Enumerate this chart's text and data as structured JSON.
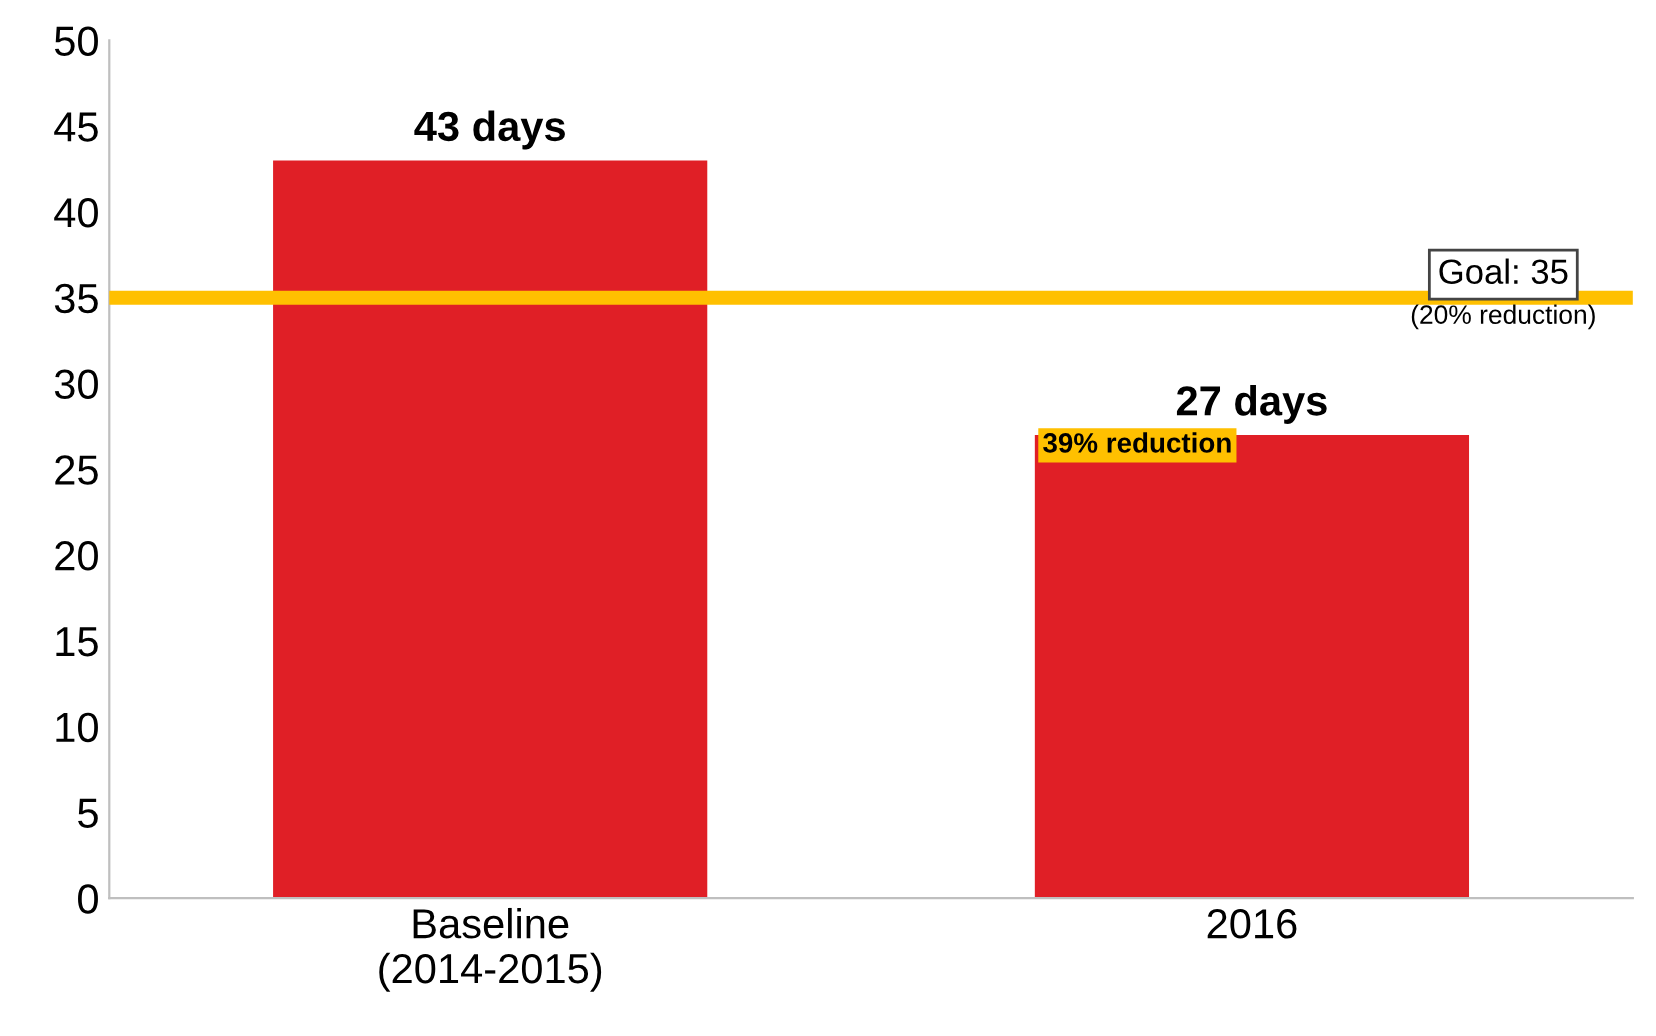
{
  "chart_data": {
    "type": "bar",
    "categories": [
      "Baseline\n(2014-2015)",
      "2016"
    ],
    "values": [
      43,
      27
    ],
    "value_labels": [
      "43 days",
      "27 days"
    ],
    "color": "#e01f26",
    "ylim": [
      0,
      50
    ],
    "yticks": [
      0,
      5,
      10,
      15,
      20,
      25,
      30,
      35,
      40,
      45,
      50
    ],
    "grid": false,
    "ref_lines": [
      {
        "axis": "y",
        "value": 35,
        "label": "Goal: 35",
        "color": "#ffc000",
        "line_style": "solid"
      }
    ],
    "annotations": [
      "(20% reduction)",
      {
        "text": "39% reduction",
        "x": "2016",
        "y": 27
      }
    ]
  }
}
